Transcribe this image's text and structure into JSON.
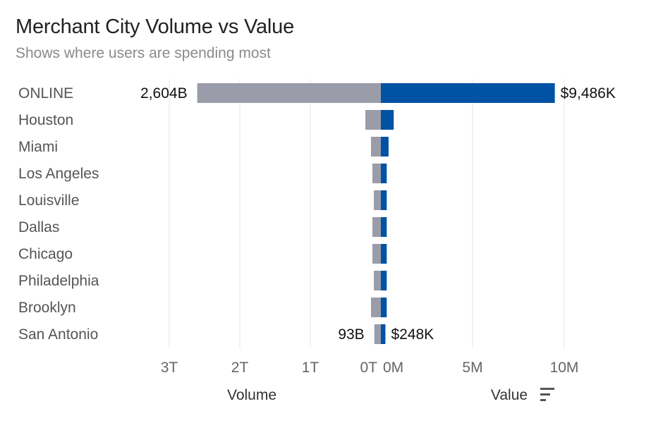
{
  "title": "Merchant City Volume vs Value",
  "subtitle": "Shows where users are spending most",
  "chart_data": {
    "type": "bar",
    "layout": "diverging-horizontal",
    "categories": [
      "ONLINE",
      "Houston",
      "Miami",
      "Los Angeles",
      "Louisville",
      "Dallas",
      "Chicago",
      "Philadelphia",
      "Brooklyn",
      "San Antonio"
    ],
    "series": [
      {
        "name": "Volume",
        "values": [
          2604,
          220,
          140,
          120,
          100,
          120,
          120,
          100,
          140,
          93
        ],
        "unit": "B",
        "labels": [
          "2,604B",
          "",
          "",
          "",
          "",
          "",
          "",
          "",
          "",
          "93B"
        ],
        "color": "#9a9ca9"
      },
      {
        "name": "Value",
        "values": [
          9486,
          700,
          420,
          320,
          320,
          320,
          320,
          320,
          320,
          248
        ],
        "unit": "K",
        "labels": [
          "$9,486K",
          "",
          "",
          "",
          "",
          "",
          "",
          "",
          "",
          "$248K"
        ],
        "color": "#0052a5"
      }
    ],
    "volume_axis": {
      "label": "Volume",
      "ticks": [
        "3T",
        "2T",
        "1T",
        "0T"
      ],
      "tick_values": [
        3000,
        2000,
        1000,
        0
      ],
      "range": [
        0,
        3000
      ]
    },
    "value_axis": {
      "label": "Value",
      "ticks": [
        "0M",
        "5M",
        "10M"
      ],
      "tick_values": [
        0,
        5000,
        10000
      ],
      "range": [
        0,
        10000
      ]
    },
    "grid": true,
    "sort_icon": "sort-descending-icon"
  }
}
